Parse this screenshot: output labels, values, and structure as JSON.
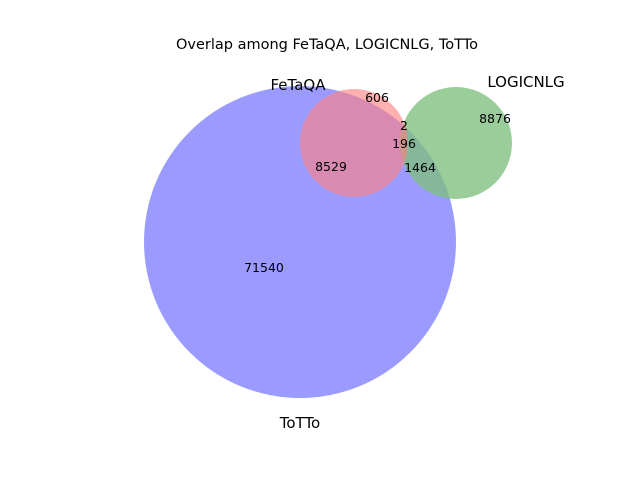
{
  "title": "Overlap among FeTaQA, LOGICNLG, ToTTo",
  "sets": [
    {
      "key": "fetaqa",
      "name": "FeTaQA",
      "color": "#ff7f7f"
    },
    {
      "key": "logicnlg",
      "name": "LOGICNLG",
      "color": "#7fbf7f"
    },
    {
      "key": "totto",
      "name": "ToTTo",
      "color": "#7f7fff"
    }
  ],
  "regions": {
    "fetaqa_only": "606",
    "logicnlg_only": "8876",
    "totto_only": "71540",
    "fetaqa_logicnlg": "2",
    "fetaqa_totto": "8529",
    "logicnlg_totto": "1464",
    "all_three": "196"
  },
  "chart_data": {
    "type": "venn",
    "title": "Overlap among FeTaQA, LOGICNLG, ToTTo",
    "sets": [
      "FeTaQA",
      "LOGICNLG",
      "ToTTo"
    ],
    "subsets": [
      {
        "sets": [
          "FeTaQA"
        ],
        "value": 606
      },
      {
        "sets": [
          "LOGICNLG"
        ],
        "value": 8876
      },
      {
        "sets": [
          "ToTTo"
        ],
        "value": 71540
      },
      {
        "sets": [
          "FeTaQA",
          "LOGICNLG"
        ],
        "value": 2
      },
      {
        "sets": [
          "FeTaQA",
          "ToTTo"
        ],
        "value": 8529
      },
      {
        "sets": [
          "LOGICNLG",
          "ToTTo"
        ],
        "value": 1464
      },
      {
        "sets": [
          "FeTaQA",
          "LOGICNLG",
          "ToTTo"
        ],
        "value": 196
      }
    ]
  }
}
